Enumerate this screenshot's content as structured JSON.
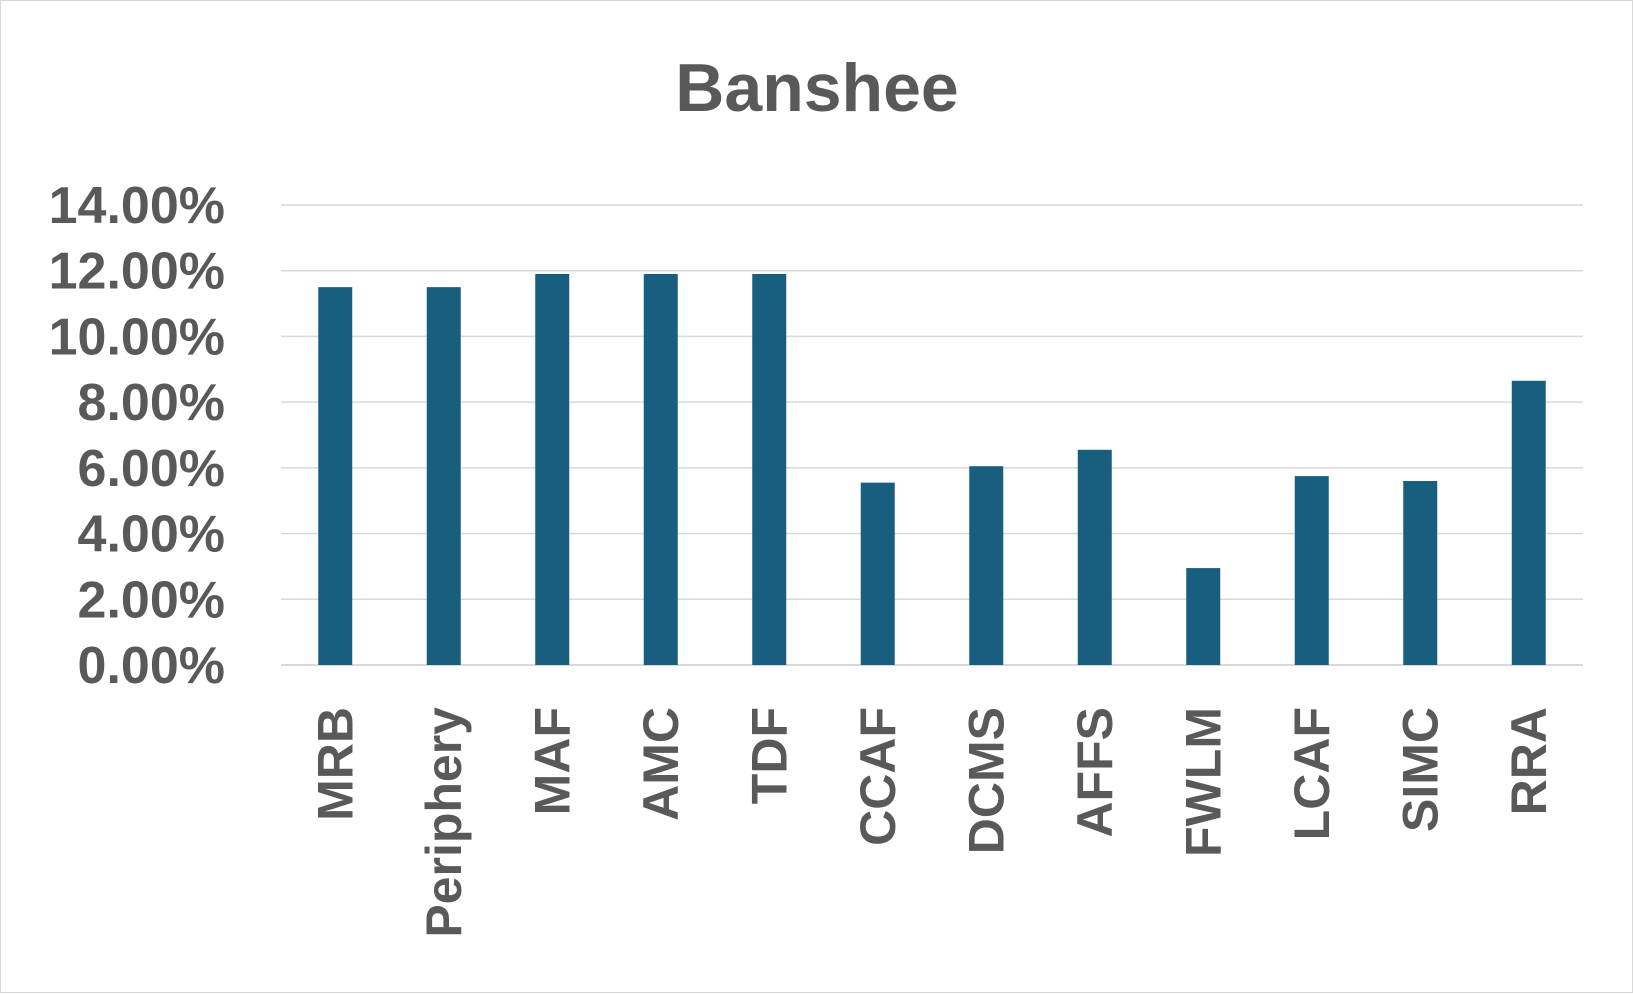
{
  "chart_data": {
    "type": "bar",
    "title": "Banshee",
    "xlabel": "",
    "ylabel": "",
    "categories": [
      "MRB",
      "Periphery",
      "MAF",
      "AMC",
      "TDF",
      "CCAF",
      "DCMS",
      "AFFS",
      "FWLM",
      "LCAF",
      "SIMC",
      "RRA"
    ],
    "values": [
      11.5,
      11.5,
      11.9,
      11.9,
      11.9,
      5.55,
      6.05,
      6.55,
      2.95,
      5.75,
      5.6,
      8.65
    ],
    "ylim": [
      0,
      14
    ],
    "yticks": [
      "0.00%",
      "2.00%",
      "4.00%",
      "6.00%",
      "8.00%",
      "10.00%",
      "12.00%",
      "14.00%"
    ],
    "grid": true,
    "legend": "none",
    "colors": {
      "bar": "#175e7f",
      "text": "#595959",
      "grid": "#d9d9d9",
      "border": "#d9d9d9"
    }
  }
}
